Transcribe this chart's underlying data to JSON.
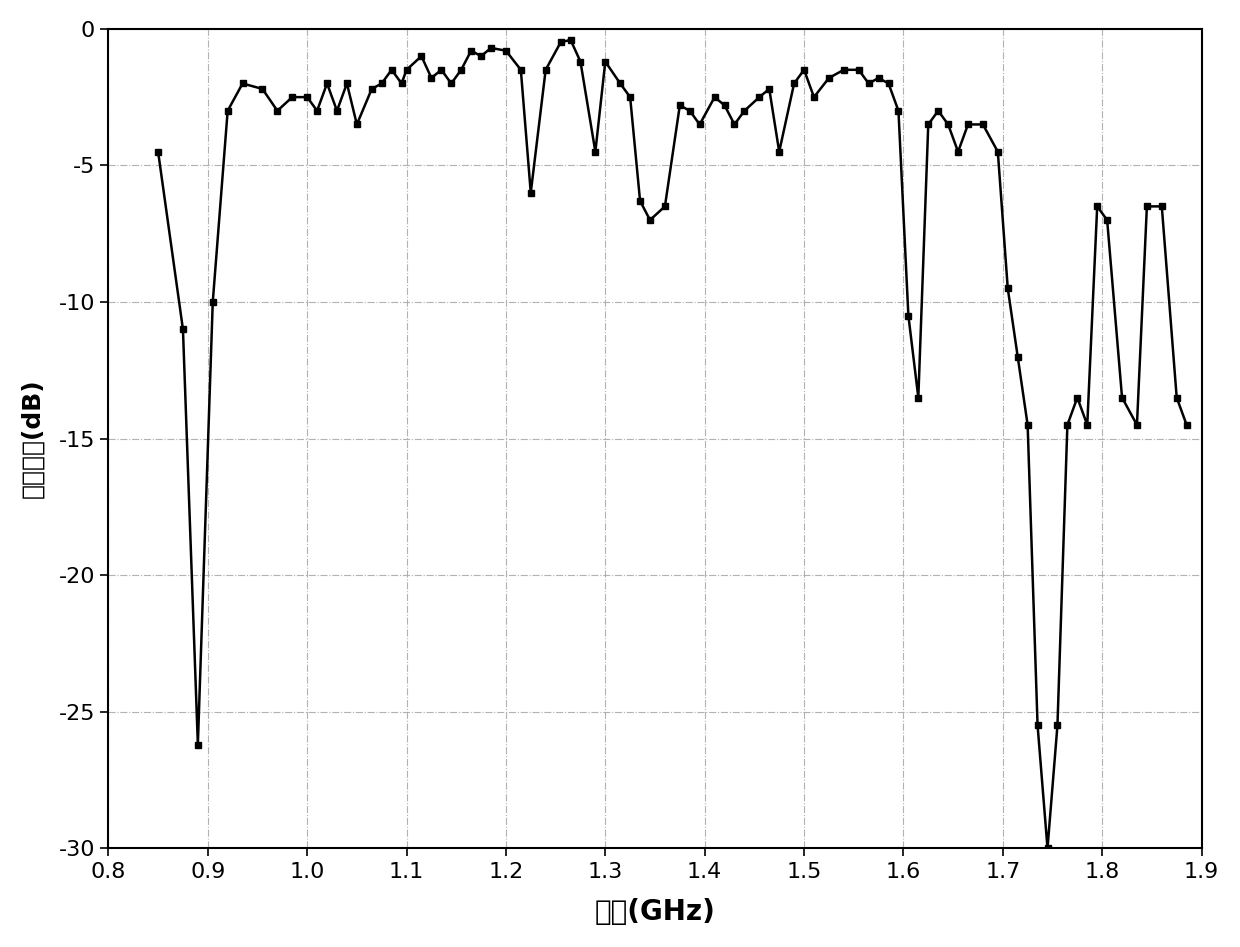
{
  "x": [
    0.85,
    0.875,
    0.89,
    0.905,
    0.92,
    0.935,
    0.955,
    0.97,
    0.985,
    1.0,
    1.01,
    1.02,
    1.03,
    1.04,
    1.05,
    1.065,
    1.075,
    1.085,
    1.095,
    1.1,
    1.115,
    1.125,
    1.135,
    1.145,
    1.155,
    1.165,
    1.175,
    1.185,
    1.2,
    1.215,
    1.225,
    1.24,
    1.255,
    1.265,
    1.275,
    1.29,
    1.3,
    1.315,
    1.325,
    1.335,
    1.345,
    1.36,
    1.375,
    1.385,
    1.395,
    1.41,
    1.42,
    1.43,
    1.44,
    1.455,
    1.465,
    1.475,
    1.49,
    1.5,
    1.51,
    1.525,
    1.54,
    1.555,
    1.565,
    1.575,
    1.585,
    1.595,
    1.605,
    1.615,
    1.625,
    1.635,
    1.645,
    1.655,
    1.665,
    1.68,
    1.695,
    1.705,
    1.715,
    1.725,
    1.735,
    1.745,
    1.755,
    1.765,
    1.775,
    1.785,
    1.795,
    1.805,
    1.82,
    1.835,
    1.845,
    1.86,
    1.875,
    1.885
  ],
  "y": [
    -4.5,
    -11.0,
    -26.2,
    -10.0,
    -3.0,
    -2.0,
    -2.2,
    -3.0,
    -2.5,
    -2.5,
    -3.0,
    -2.0,
    -3.0,
    -2.0,
    -3.5,
    -2.2,
    -2.0,
    -1.5,
    -2.0,
    -1.5,
    -1.0,
    -1.8,
    -1.5,
    -2.0,
    -1.5,
    -0.8,
    -1.0,
    -0.7,
    -0.8,
    -1.5,
    -6.0,
    -1.5,
    -0.5,
    -0.4,
    -1.2,
    -4.5,
    -1.2,
    -2.0,
    -2.5,
    -6.3,
    -7.0,
    -6.5,
    -2.8,
    -3.0,
    -3.5,
    -2.5,
    -2.8,
    -3.5,
    -3.0,
    -2.5,
    -2.2,
    -4.5,
    -2.0,
    -1.5,
    -2.5,
    -1.8,
    -1.5,
    -1.5,
    -2.0,
    -1.8,
    -2.0,
    -3.0,
    -10.5,
    -13.5,
    -3.5,
    -3.0,
    -3.5,
    -4.5,
    -3.5,
    -3.5,
    -4.5,
    -9.5,
    -12.0,
    -14.5,
    -25.5,
    -30.0,
    -25.5,
    -14.5,
    -13.5,
    -14.5,
    -6.5,
    -7.0,
    -13.5,
    -14.5,
    -6.5,
    -6.5,
    -13.5,
    -14.5
  ],
  "xlabel": "频率(GHz)",
  "ylabel": "回波损耗(dB)",
  "xlim": [
    0.8,
    1.9
  ],
  "ylim": [
    -30,
    0
  ],
  "xticks": [
    0.8,
    0.9,
    1.0,
    1.1,
    1.2,
    1.3,
    1.4,
    1.5,
    1.6,
    1.7,
    1.8,
    1.9
  ],
  "yticks": [
    0,
    -5,
    -10,
    -15,
    -20,
    -25,
    -30
  ],
  "grid_color": "#aaaaaa",
  "line_color": "#000000",
  "marker": "s",
  "markersize": 5,
  "linewidth": 1.8,
  "xlabel_fontsize": 20,
  "ylabel_fontsize": 18,
  "tick_fontsize": 16
}
